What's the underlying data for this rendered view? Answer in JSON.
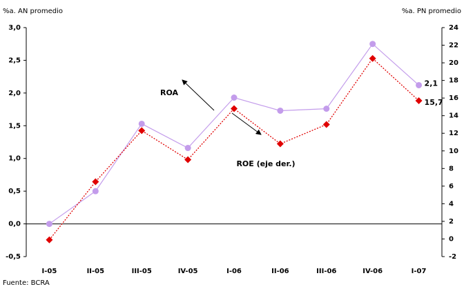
{
  "chart_data": {
    "type": "line",
    "y_label": "%a. AN promedio",
    "y2_label": "%a. PN promedio",
    "source": "Fuente: BCRA",
    "categories": [
      "I-05",
      "II-05",
      "III-05",
      "IV-05",
      "I-06",
      "II-06",
      "III-06",
      "IV-06",
      "I-07"
    ],
    "series": [
      {
        "name": "ROA",
        "color": "#c39ceb",
        "marker": "circle",
        "line": "solid",
        "values": [
          0.0,
          0.5,
          1.53,
          1.16,
          1.93,
          1.73,
          1.76,
          2.75,
          2.12
        ],
        "value_labels": [
          null,
          null,
          null,
          null,
          null,
          null,
          null,
          null,
          "2,1"
        ]
      },
      {
        "name": "ROE (eje der.)",
        "color": "#e00000",
        "marker": "diamond",
        "line": "dotted",
        "axis": "y2",
        "values": [
          -0.1,
          6.5,
          12.3,
          9.0,
          14.8,
          10.8,
          13.0,
          20.5,
          15.7
        ],
        "value_labels": [
          null,
          null,
          null,
          null,
          null,
          null,
          null,
          null,
          "15,7"
        ]
      }
    ],
    "ylim": [
      -0.5,
      3.0
    ],
    "yticks": [
      {
        "value": -0.5,
        "label": "-0,5"
      },
      {
        "value": 0,
        "label": "0,0"
      },
      {
        "value": 0.5,
        "label": "0,5"
      },
      {
        "value": 1.0,
        "label": "1,0"
      },
      {
        "value": 1.5,
        "label": "1,5"
      },
      {
        "value": 2.0,
        "label": "2,0"
      },
      {
        "value": 2.5,
        "label": "2,5"
      },
      {
        "value": 3.0,
        "label": "3,0"
      }
    ],
    "y2lim": [
      -2,
      24
    ],
    "y2ticks": [
      -2,
      0,
      2,
      4,
      6,
      8,
      10,
      12,
      14,
      16,
      18,
      20,
      22,
      24
    ]
  }
}
